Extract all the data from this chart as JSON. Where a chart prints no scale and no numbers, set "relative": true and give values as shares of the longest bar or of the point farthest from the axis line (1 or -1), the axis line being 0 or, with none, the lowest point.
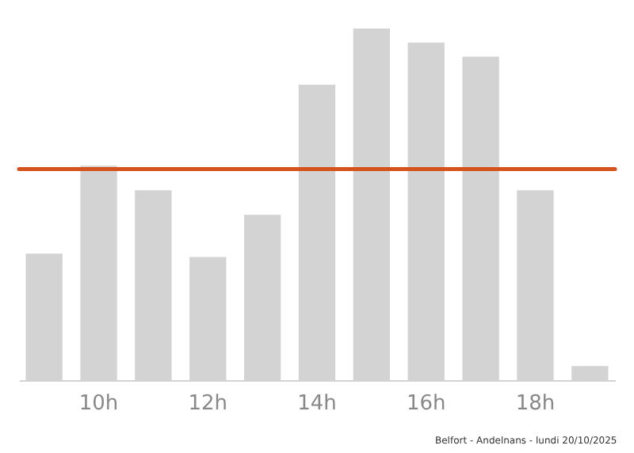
{
  "chart_data": {
    "type": "bar",
    "relative": true,
    "categories": [
      null,
      "10h",
      null,
      "12h",
      null,
      "14h",
      null,
      "16h",
      null,
      "18h",
      null
    ],
    "values": [
      0.36,
      0.61,
      0.54,
      0.35,
      0.47,
      0.84,
      1,
      0.96,
      0.92,
      0.54,
      0.04
    ],
    "color": "#d3d3d3",
    "grid": false,
    "ref_lines": [
      {
        "axis": "y",
        "value": 0.6,
        "color": "#d4531c"
      }
    ],
    "annotations": [
      "Belfort - Andelnans - lundi 20/10/2025"
    ]
  }
}
